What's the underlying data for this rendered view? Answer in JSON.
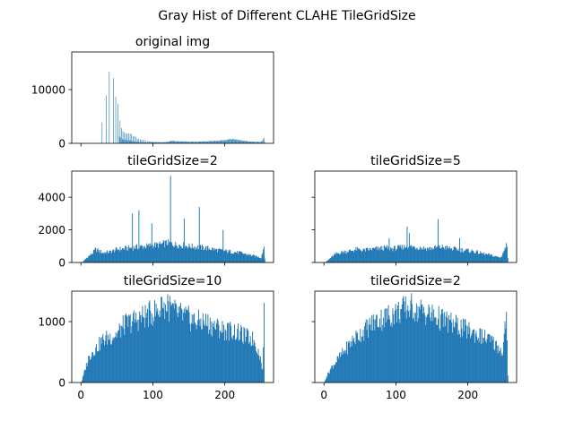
{
  "figure": {
    "suptitle": "Gray Hist of Different CLAHE TileGridSize",
    "bar_color": "#1f77b4",
    "bins": 256
  },
  "chart_data": [
    {
      "type": "bar",
      "title": "original img",
      "x": [
        0,
        255
      ],
      "xlim": [
        -12.75,
        267.75
      ],
      "ylim": [
        0,
        17000
      ],
      "xticks": [
        0,
        100,
        200
      ],
      "yticks": [
        0,
        10000
      ],
      "ytick_labels": [
        "0",
        "10000"
      ],
      "show_xtick_labels": false,
      "show_ytick_labels": true,
      "profile": [
        [
          0,
          0
        ],
        [
          28,
          0
        ],
        [
          29,
          3400
        ],
        [
          30,
          0
        ],
        [
          34,
          0
        ],
        [
          35,
          7800
        ],
        [
          36,
          0
        ],
        [
          38,
          0
        ],
        [
          39,
          13000
        ],
        [
          40,
          0
        ],
        [
          44,
          0
        ],
        [
          45,
          13000
        ],
        [
          46,
          0
        ],
        [
          47,
          0
        ],
        [
          48,
          9800
        ],
        [
          49,
          0
        ],
        [
          50,
          0
        ],
        [
          51,
          6700
        ],
        [
          52,
          0
        ],
        [
          53,
          4300
        ],
        [
          54,
          3800
        ],
        [
          55,
          3500
        ],
        [
          56,
          3100
        ],
        [
          57,
          2800
        ],
        [
          58,
          2500
        ],
        [
          60,
          2300
        ],
        [
          62,
          2200
        ],
        [
          64,
          2100
        ],
        [
          66,
          2000
        ],
        [
          68,
          1900
        ],
        [
          70,
          1700
        ],
        [
          72,
          1500
        ],
        [
          74,
          1300
        ],
        [
          76,
          1150
        ],
        [
          78,
          1000
        ],
        [
          80,
          900
        ],
        [
          82,
          800
        ],
        [
          84,
          700
        ],
        [
          86,
          650
        ],
        [
          88,
          550
        ],
        [
          90,
          450
        ],
        [
          95,
          300
        ],
        [
          100,
          250
        ],
        [
          110,
          200
        ],
        [
          120,
          250
        ],
        [
          125,
          500
        ],
        [
          130,
          400
        ],
        [
          140,
          350
        ],
        [
          150,
          300
        ],
        [
          160,
          300
        ],
        [
          170,
          350
        ],
        [
          180,
          400
        ],
        [
          190,
          500
        ],
        [
          200,
          600
        ],
        [
          205,
          700
        ],
        [
          210,
          800
        ],
        [
          215,
          700
        ],
        [
          220,
          600
        ],
        [
          230,
          400
        ],
        [
          240,
          300
        ],
        [
          250,
          250
        ],
        [
          254,
          900
        ],
        [
          255,
          250
        ]
      ],
      "sparse": true
    },
    {
      "type": "bar",
      "title": "tileGridSize=2",
      "x": [
        0,
        255
      ],
      "xlim": [
        -12.75,
        267.75
      ],
      "ylim": [
        0,
        5600
      ],
      "xticks": [
        0,
        100,
        200
      ],
      "yticks": [
        0,
        2000,
        4000
      ],
      "ytick_labels": [
        "0",
        "2000",
        "4000"
      ],
      "show_xtick_labels": false,
      "show_ytick_labels": true,
      "profile": [
        [
          0,
          0
        ],
        [
          3,
          80
        ],
        [
          8,
          300
        ],
        [
          15,
          550
        ],
        [
          20,
          800
        ],
        [
          30,
          600
        ],
        [
          40,
          650
        ],
        [
          50,
          800
        ],
        [
          60,
          850
        ],
        [
          70,
          900
        ],
        [
          80,
          950
        ],
        [
          90,
          1000
        ],
        [
          100,
          1050
        ],
        [
          110,
          1100
        ],
        [
          120,
          1200
        ],
        [
          130,
          1100
        ],
        [
          140,
          1050
        ],
        [
          150,
          1000
        ],
        [
          160,
          950
        ],
        [
          170,
          900
        ],
        [
          180,
          850
        ],
        [
          190,
          750
        ],
        [
          200,
          700
        ],
        [
          210,
          650
        ],
        [
          220,
          600
        ],
        [
          230,
          500
        ],
        [
          240,
          400
        ],
        [
          250,
          300
        ],
        [
          254,
          1000
        ],
        [
          255,
          300
        ]
      ],
      "spikes": [
        [
          71,
          3000
        ],
        [
          80,
          3200
        ],
        [
          98,
          2400
        ],
        [
          124,
          5300
        ],
        [
          143,
          2700
        ],
        [
          164,
          3400
        ],
        [
          197,
          2000
        ]
      ]
    },
    {
      "type": "bar",
      "title": "tileGridSize=5",
      "x": [
        0,
        255
      ],
      "xlim": [
        -12.75,
        267.75
      ],
      "ylim": [
        0,
        5600
      ],
      "xticks": [
        0,
        100,
        200
      ],
      "yticks": [
        0,
        2000,
        4000
      ],
      "show_xtick_labels": false,
      "show_ytick_labels": false,
      "profile": [
        [
          0,
          0
        ],
        [
          3,
          60
        ],
        [
          8,
          250
        ],
        [
          15,
          500
        ],
        [
          25,
          650
        ],
        [
          35,
          700
        ],
        [
          45,
          800
        ],
        [
          55,
          750
        ],
        [
          65,
          800
        ],
        [
          75,
          850
        ],
        [
          85,
          900
        ],
        [
          95,
          850
        ],
        [
          105,
          900
        ],
        [
          115,
          1000
        ],
        [
          125,
          950
        ],
        [
          135,
          900
        ],
        [
          145,
          850
        ],
        [
          155,
          900
        ],
        [
          165,
          950
        ],
        [
          175,
          850
        ],
        [
          185,
          800
        ],
        [
          195,
          750
        ],
        [
          205,
          700
        ],
        [
          215,
          600
        ],
        [
          225,
          500
        ],
        [
          235,
          400
        ],
        [
          245,
          300
        ],
        [
          254,
          1100
        ],
        [
          255,
          300
        ]
      ],
      "spikes": [
        [
          90,
          1500
        ],
        [
          115,
          2200
        ],
        [
          118,
          1800
        ],
        [
          158,
          2650
        ],
        [
          188,
          1500
        ]
      ]
    },
    {
      "type": "bar",
      "title": "tileGridSize=10",
      "x": [
        0,
        255
      ],
      "xlim": [
        -12.75,
        267.75
      ],
      "ylim": [
        0,
        1500
      ],
      "xticks": [
        0,
        100,
        200
      ],
      "yticks": [
        0,
        1000
      ],
      "ytick_labels": [
        "0",
        "1000"
      ],
      "xtick_labels": [
        "0",
        "100",
        "200"
      ],
      "show_xtick_labels": true,
      "show_ytick_labels": true,
      "profile": [
        [
          0,
          0
        ],
        [
          2,
          80
        ],
        [
          5,
          200
        ],
        [
          10,
          400
        ],
        [
          15,
          500
        ],
        [
          20,
          550
        ],
        [
          30,
          700
        ],
        [
          40,
          750
        ],
        [
          50,
          800
        ],
        [
          60,
          950
        ],
        [
          70,
          1000
        ],
        [
          80,
          1050
        ],
        [
          90,
          1100
        ],
        [
          100,
          1150
        ],
        [
          110,
          1200
        ],
        [
          120,
          1250
        ],
        [
          130,
          1150
        ],
        [
          140,
          1100
        ],
        [
          150,
          1050
        ],
        [
          160,
          1000
        ],
        [
          170,
          1000
        ],
        [
          180,
          950
        ],
        [
          190,
          900
        ],
        [
          200,
          850
        ],
        [
          210,
          850
        ],
        [
          220,
          800
        ],
        [
          230,
          750
        ],
        [
          240,
          700
        ],
        [
          248,
          450
        ],
        [
          252,
          200
        ],
        [
          254,
          1100
        ],
        [
          255,
          0
        ]
      ],
      "spikes": [
        [
          112,
          1400
        ],
        [
          120,
          1450
        ]
      ]
    },
    {
      "type": "bar",
      "title": "tileGridSize=2",
      "x": [
        0,
        255
      ],
      "xlim": [
        -12.75,
        267.75
      ],
      "ylim": [
        0,
        1500
      ],
      "xticks": [
        0,
        100,
        200
      ],
      "yticks": [
        0,
        1000
      ],
      "xtick_labels": [
        "0",
        "100",
        "200"
      ],
      "show_xtick_labels": true,
      "show_ytick_labels": false,
      "profile": [
        [
          0,
          0
        ],
        [
          3,
          100
        ],
        [
          10,
          250
        ],
        [
          20,
          400
        ],
        [
          30,
          550
        ],
        [
          40,
          700
        ],
        [
          50,
          800
        ],
        [
          60,
          900
        ],
        [
          70,
          1000
        ],
        [
          80,
          1050
        ],
        [
          90,
          1100
        ],
        [
          100,
          1150
        ],
        [
          110,
          1200
        ],
        [
          120,
          1250
        ],
        [
          130,
          1200
        ],
        [
          140,
          1150
        ],
        [
          150,
          1100
        ],
        [
          160,
          1050
        ],
        [
          170,
          1000
        ],
        [
          180,
          950
        ],
        [
          190,
          900
        ],
        [
          200,
          850
        ],
        [
          210,
          800
        ],
        [
          220,
          750
        ],
        [
          230,
          700
        ],
        [
          240,
          600
        ],
        [
          248,
          500
        ],
        [
          253,
          1150
        ],
        [
          255,
          100
        ]
      ],
      "spikes": [
        [
          120,
          1350
        ],
        [
          128,
          1300
        ]
      ]
    }
  ]
}
